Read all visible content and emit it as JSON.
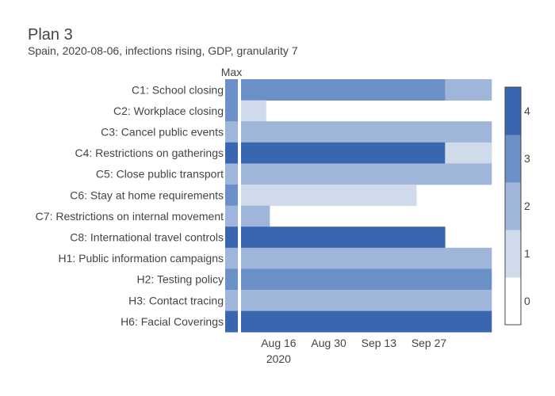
{
  "title": "Plan 3",
  "subtitle": "Spain, 2020-08-06, infections rising, GDP, granularity 7",
  "max_label": "Max",
  "colorscale": [
    {
      "level": 0,
      "color": "#ffffff"
    },
    {
      "level": 1,
      "color": "#cfdaea"
    },
    {
      "level": 2,
      "color": "#9fb5d9"
    },
    {
      "level": 3,
      "color": "#6b90c7"
    },
    {
      "level": 4,
      "color": "#3a66b0"
    }
  ],
  "chart_data": {
    "type": "heatmap",
    "title": "Plan 3",
    "subtitle": "Spain, 2020-08-06, infections rising, GDP, granularity 7",
    "x_start": "2020-08-06",
    "period_days": 7,
    "x_ticks": [
      {
        "date": "2020-08-16",
        "label": "Aug 16",
        "sublabel": "2020"
      },
      {
        "date": "2020-08-30",
        "label": "Aug 30",
        "sublabel": ""
      },
      {
        "date": "2020-09-13",
        "label": "Sep 13",
        "sublabel": ""
      },
      {
        "date": "2020-09-27",
        "label": "Sep 27",
        "sublabel": ""
      }
    ],
    "colorbar": {
      "min": 0,
      "max": 4,
      "ticks": [
        0,
        1,
        2,
        3,
        4
      ]
    },
    "rows": [
      {
        "label": "C1: School closing",
        "max": 3,
        "values": [
          3,
          3,
          3,
          3,
          3,
          3,
          3,
          3,
          3,
          3,
          3,
          3,
          3,
          3,
          3,
          3,
          3,
          3,
          3,
          3,
          3,
          3,
          3,
          3,
          3,
          3,
          3,
          3,
          3,
          3,
          3,
          3,
          3,
          3,
          3,
          3,
          3,
          3,
          3,
          3,
          3,
          3,
          3,
          3,
          3,
          3,
          3,
          3,
          3,
          3,
          3,
          3,
          3,
          3,
          3,
          3,
          3,
          2,
          2,
          2,
          2,
          2,
          2,
          2,
          2,
          2,
          2,
          2,
          2,
          2
        ]
      },
      {
        "label": "C2: Workplace closing",
        "max": 3,
        "values": [
          1,
          1,
          1,
          1,
          1,
          1,
          1,
          0,
          0,
          0,
          0,
          0,
          0,
          0,
          0,
          0,
          0,
          0,
          0,
          0,
          0,
          0,
          0,
          0,
          0,
          0,
          0,
          0,
          0,
          0,
          0,
          0,
          0,
          0,
          0,
          0,
          0,
          0,
          0,
          0,
          0,
          0,
          0,
          0,
          0,
          0,
          0,
          0,
          0,
          0,
          0,
          0,
          0,
          0,
          0,
          0,
          0,
          0,
          0,
          0,
          0,
          0,
          0,
          0,
          0,
          0,
          0,
          0,
          0,
          0
        ]
      },
      {
        "label": "C3: Cancel public events",
        "max": 2,
        "values": [
          2,
          2,
          2,
          2,
          2,
          2,
          2,
          2,
          2,
          2,
          2,
          2,
          2,
          2,
          2,
          2,
          2,
          2,
          2,
          2,
          2,
          2,
          2,
          2,
          2,
          2,
          2,
          2,
          2,
          2,
          2,
          2,
          2,
          2,
          2,
          2,
          2,
          2,
          2,
          2,
          2,
          2,
          2,
          2,
          2,
          2,
          2,
          2,
          2,
          2,
          2,
          2,
          2,
          2,
          2,
          2,
          2,
          2,
          2,
          2,
          2,
          2,
          2,
          2,
          2,
          2,
          2,
          2,
          2,
          2
        ]
      },
      {
        "label": "C4: Restrictions on gatherings",
        "max": 4,
        "values": [
          4,
          4,
          4,
          4,
          4,
          4,
          4,
          4,
          4,
          4,
          4,
          4,
          4,
          4,
          4,
          4,
          4,
          4,
          4,
          4,
          4,
          4,
          4,
          4,
          4,
          4,
          4,
          4,
          4,
          4,
          4,
          4,
          4,
          4,
          4,
          4,
          4,
          4,
          4,
          4,
          4,
          4,
          4,
          4,
          4,
          4,
          4,
          4,
          4,
          4,
          4,
          4,
          4,
          4,
          4,
          4,
          4,
          1,
          1,
          1,
          1,
          1,
          1,
          1,
          1,
          1,
          1,
          1,
          1,
          1
        ]
      },
      {
        "label": "C5: Close public transport",
        "max": 2,
        "values": [
          2,
          2,
          2,
          2,
          2,
          2,
          2,
          2,
          2,
          2,
          2,
          2,
          2,
          2,
          2,
          2,
          2,
          2,
          2,
          2,
          2,
          2,
          2,
          2,
          2,
          2,
          2,
          2,
          2,
          2,
          2,
          2,
          2,
          2,
          2,
          2,
          2,
          2,
          2,
          2,
          2,
          2,
          2,
          2,
          2,
          2,
          2,
          2,
          2,
          2,
          2,
          2,
          2,
          2,
          2,
          2,
          2,
          2,
          2,
          2,
          2,
          2,
          2,
          2,
          2,
          2,
          2,
          2,
          2,
          2
        ]
      },
      {
        "label": "C6: Stay at home requirements",
        "max": 3,
        "values": [
          1,
          1,
          1,
          1,
          1,
          1,
          1,
          1,
          1,
          1,
          1,
          1,
          1,
          1,
          1,
          1,
          1,
          1,
          1,
          1,
          1,
          1,
          1,
          1,
          1,
          1,
          1,
          1,
          1,
          1,
          1,
          1,
          1,
          1,
          1,
          1,
          1,
          1,
          1,
          1,
          1,
          1,
          1,
          1,
          1,
          1,
          1,
          1,
          1,
          0,
          0,
          0,
          0,
          0,
          0,
          0,
          0,
          0,
          0,
          0,
          0,
          0,
          0,
          0,
          0,
          0,
          0,
          0,
          0,
          0
        ]
      },
      {
        "label": "C7: Restrictions on internal movement",
        "max": 2,
        "values": [
          2,
          2,
          2,
          2,
          2,
          2,
          2,
          2,
          0,
          0,
          0,
          0,
          0,
          0,
          0,
          0,
          0,
          0,
          0,
          0,
          0,
          0,
          0,
          0,
          0,
          0,
          0,
          0,
          0,
          0,
          0,
          0,
          0,
          0,
          0,
          0,
          0,
          0,
          0,
          0,
          0,
          0,
          0,
          0,
          0,
          0,
          0,
          0,
          0,
          0,
          0,
          0,
          0,
          0,
          0,
          0,
          0,
          0,
          0,
          0,
          0,
          0,
          0,
          0,
          0,
          0,
          0,
          0,
          0,
          0
        ]
      },
      {
        "label": "C8: International travel controls",
        "max": 4,
        "values": [
          4,
          4,
          4,
          4,
          4,
          4,
          4,
          4,
          4,
          4,
          4,
          4,
          4,
          4,
          4,
          4,
          4,
          4,
          4,
          4,
          4,
          4,
          4,
          4,
          4,
          4,
          4,
          4,
          4,
          4,
          4,
          4,
          4,
          4,
          4,
          4,
          4,
          4,
          4,
          4,
          4,
          4,
          4,
          4,
          4,
          4,
          4,
          4,
          4,
          4,
          4,
          4,
          4,
          4,
          4,
          4,
          4,
          0,
          0,
          0,
          0,
          0,
          0,
          0,
          0,
          0,
          0,
          0,
          0,
          0
        ]
      },
      {
        "label": "H1: Public information campaigns",
        "max": 2,
        "values": [
          2,
          2,
          2,
          2,
          2,
          2,
          2,
          2,
          2,
          2,
          2,
          2,
          2,
          2,
          2,
          2,
          2,
          2,
          2,
          2,
          2,
          2,
          2,
          2,
          2,
          2,
          2,
          2,
          2,
          2,
          2,
          2,
          2,
          2,
          2,
          2,
          2,
          2,
          2,
          2,
          2,
          2,
          2,
          2,
          2,
          2,
          2,
          2,
          2,
          2,
          2,
          2,
          2,
          2,
          2,
          2,
          2,
          2,
          2,
          2,
          2,
          2,
          2,
          2,
          2,
          2,
          2,
          2,
          2,
          2
        ]
      },
      {
        "label": "H2: Testing policy",
        "max": 3,
        "values": [
          3,
          3,
          3,
          3,
          3,
          3,
          3,
          3,
          3,
          3,
          3,
          3,
          3,
          3,
          3,
          3,
          3,
          3,
          3,
          3,
          3,
          3,
          3,
          3,
          3,
          3,
          3,
          3,
          3,
          3,
          3,
          3,
          3,
          3,
          3,
          3,
          3,
          3,
          3,
          3,
          3,
          3,
          3,
          3,
          3,
          3,
          3,
          3,
          3,
          3,
          3,
          3,
          3,
          3,
          3,
          3,
          3,
          3,
          3,
          3,
          3,
          3,
          3,
          3,
          3,
          3,
          3,
          3,
          3,
          3
        ]
      },
      {
        "label": "H3: Contact tracing",
        "max": 2,
        "values": [
          2,
          2,
          2,
          2,
          2,
          2,
          2,
          2,
          2,
          2,
          2,
          2,
          2,
          2,
          2,
          2,
          2,
          2,
          2,
          2,
          2,
          2,
          2,
          2,
          2,
          2,
          2,
          2,
          2,
          2,
          2,
          2,
          2,
          2,
          2,
          2,
          2,
          2,
          2,
          2,
          2,
          2,
          2,
          2,
          2,
          2,
          2,
          2,
          2,
          2,
          2,
          2,
          2,
          2,
          2,
          2,
          2,
          2,
          2,
          2,
          2,
          2,
          2,
          2,
          2,
          2,
          2,
          2,
          2,
          2
        ]
      },
      {
        "label": "H6: Facial Coverings",
        "max": 4,
        "values": [
          4,
          4,
          4,
          4,
          4,
          4,
          4,
          4,
          4,
          4,
          4,
          4,
          4,
          4,
          4,
          4,
          4,
          4,
          4,
          4,
          4,
          4,
          4,
          4,
          4,
          4,
          4,
          4,
          4,
          4,
          4,
          4,
          4,
          4,
          4,
          4,
          4,
          4,
          4,
          4,
          4,
          4,
          4,
          4,
          4,
          4,
          4,
          4,
          4,
          4,
          4,
          4,
          4,
          4,
          4,
          4,
          4,
          4,
          4,
          4,
          4,
          4,
          4,
          4,
          4,
          4,
          4,
          4,
          4,
          4
        ]
      }
    ]
  }
}
